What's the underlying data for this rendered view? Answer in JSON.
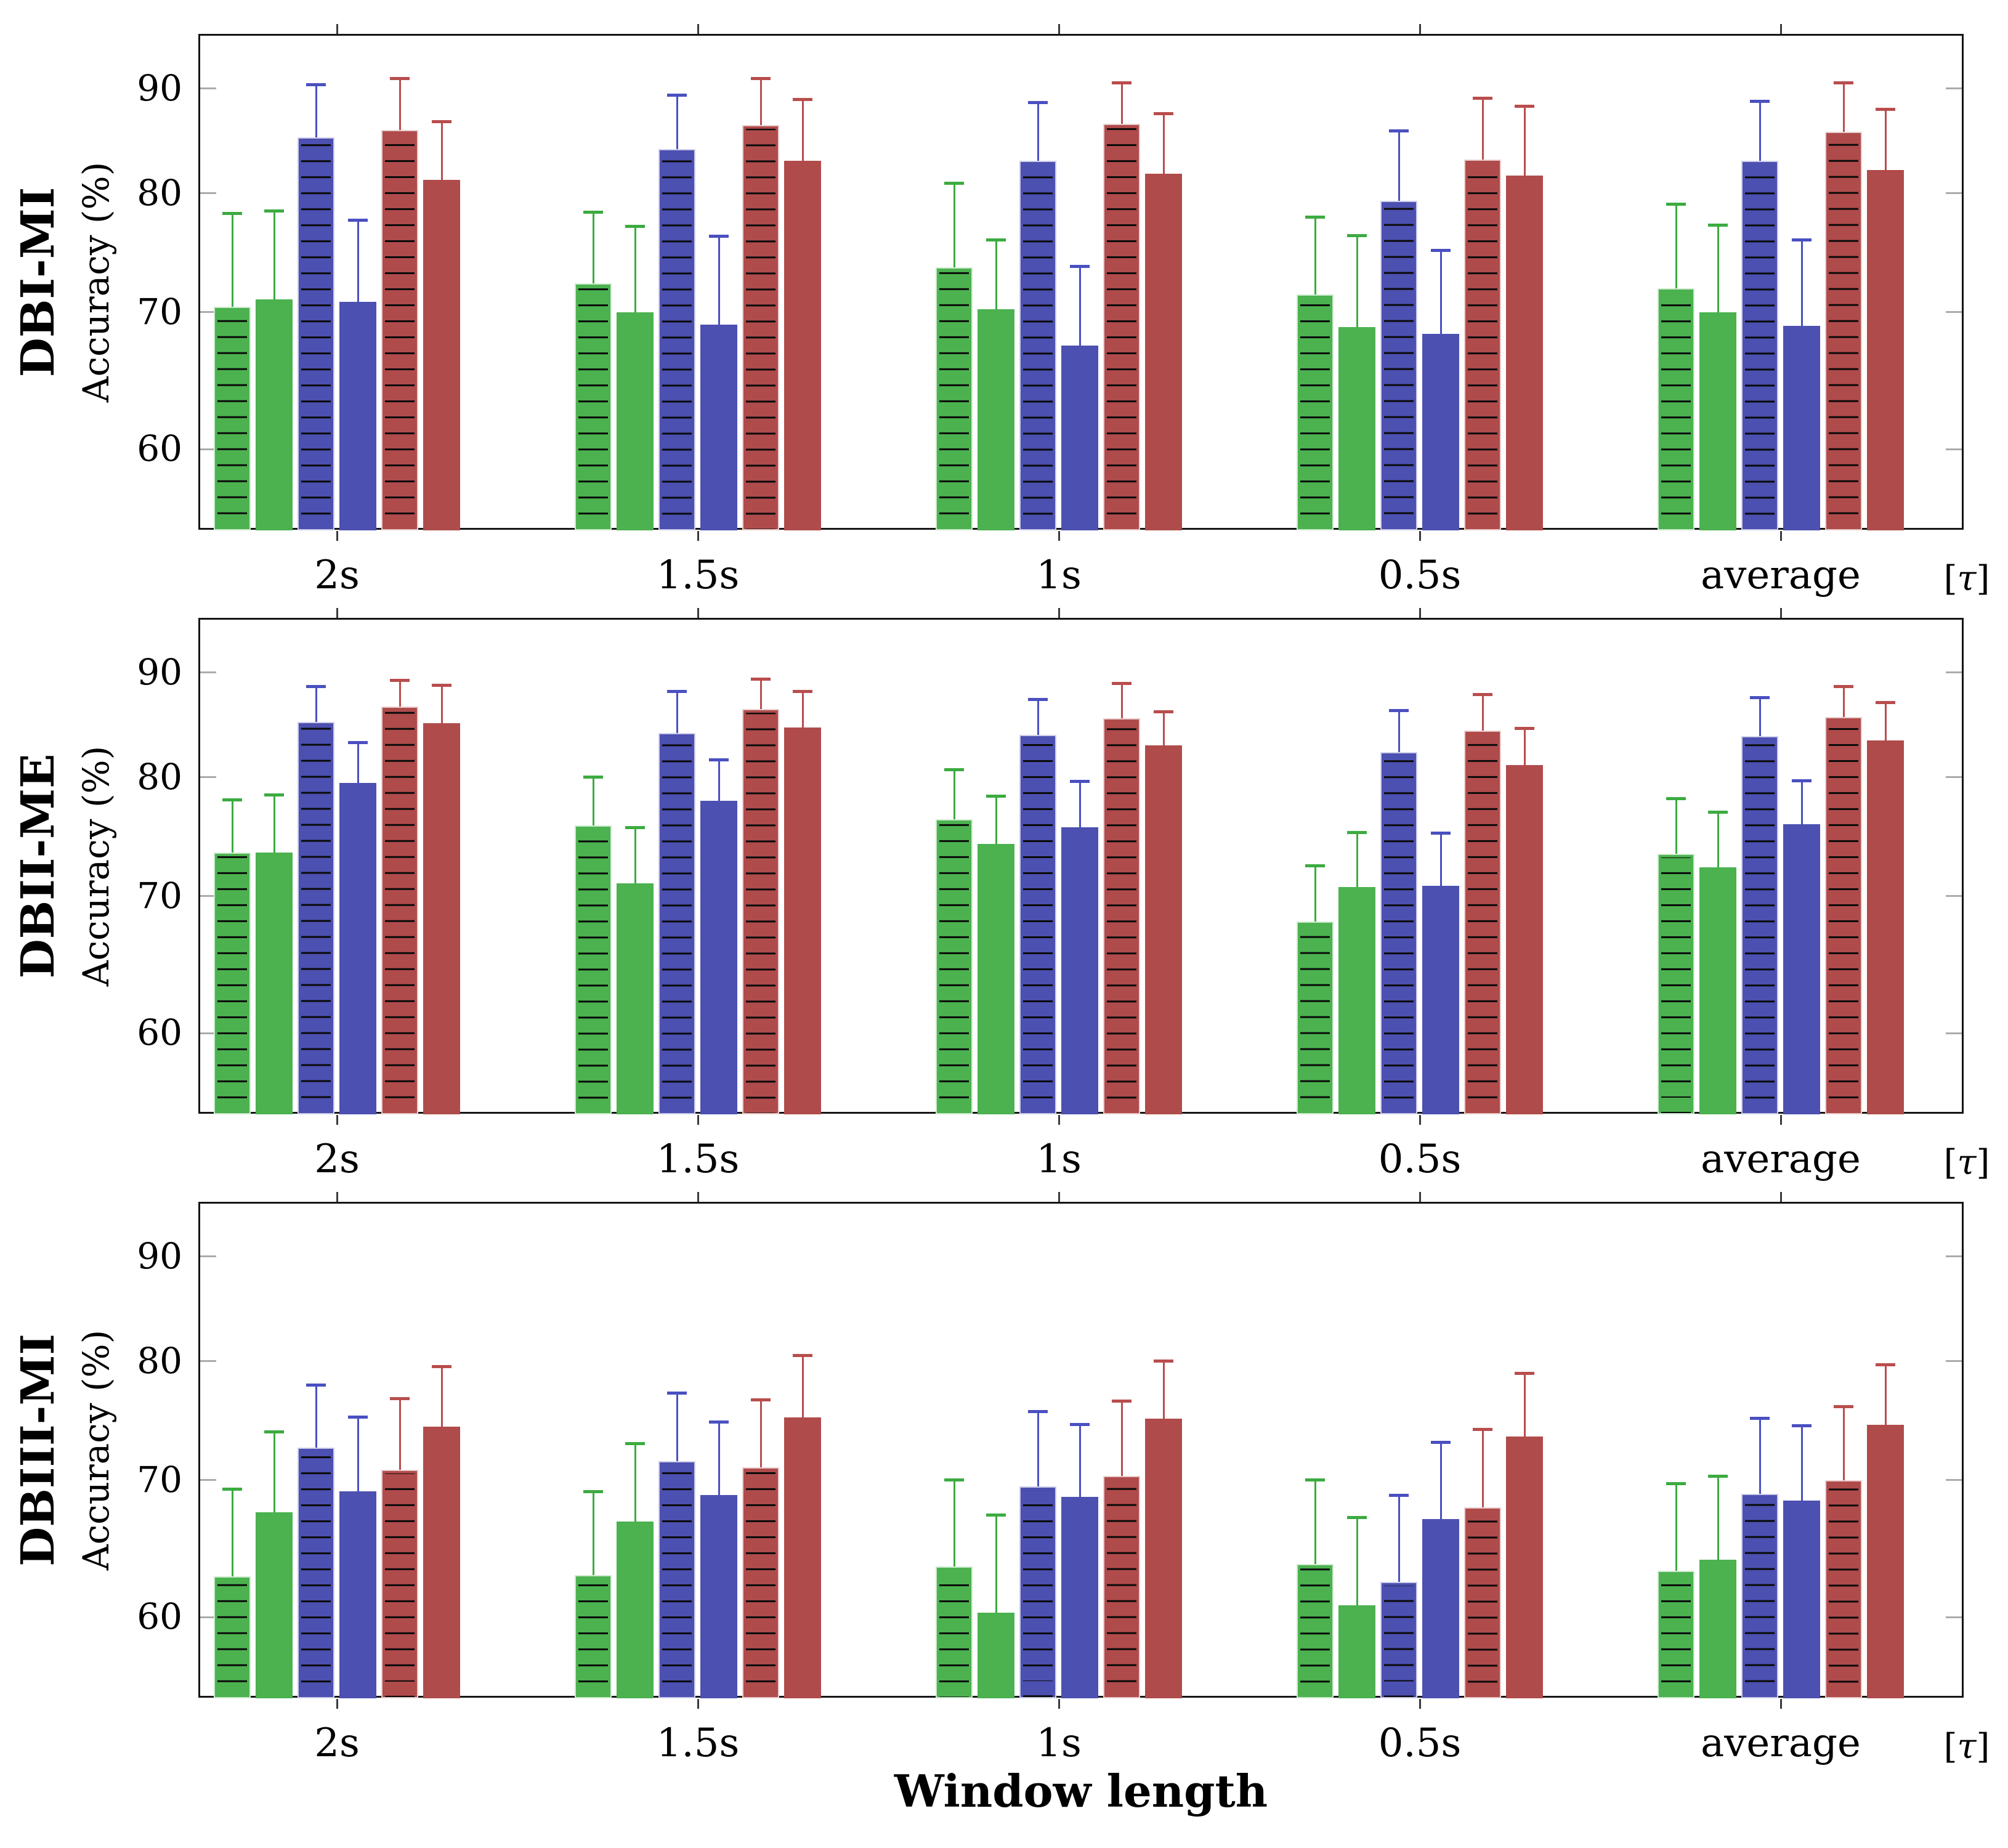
{
  "figure": {
    "x_axis_title": "Window length",
    "y_axis_title": "Accuracy (%)",
    "unit_label": "[τ]",
    "categories": [
      "2s",
      "1.5s",
      "1s",
      "0.5s",
      "average"
    ],
    "y_ticks": [
      60,
      70,
      80,
      90
    ],
    "colors": {
      "green": "#4bb24f",
      "blue": "#4c50b0",
      "red": "#b04b4b",
      "green_error": "#3cab40",
      "blue_error": "#4a50c0",
      "red_error": "#b94d4d",
      "axis": "#161616",
      "y_tick_mark": "#ababab",
      "x_tick_mark": "#3a3a3a"
    }
  },
  "chart_data": [
    {
      "type": "bar",
      "row_label": "DBI-MI",
      "ylabel": "Accuracy (%)",
      "xlabel": "Window length",
      "unit_label": "[τ]",
      "categories": [
        "2s",
        "1.5s",
        "1s",
        "0.5s",
        "average"
      ],
      "y_scale": "log10",
      "ylim": [
        54.8,
        95.7
      ],
      "yticks": [
        60,
        70,
        80,
        90
      ],
      "grid": false,
      "legend": "none",
      "series": [
        {
          "name": "green-hatched",
          "color": "#4bb24f",
          "error_color": "#3cab40",
          "hatched": true,
          "values": [
            70.4,
            72.3,
            73.6,
            71.4,
            71.9
          ],
          "error_top": [
            78.2,
            78.3,
            80.9,
            77.9,
            79.0
          ]
        },
        {
          "name": "green-solid",
          "color": "#4bb24f",
          "error_color": "#3cab40",
          "hatched": false,
          "values": [
            71.0,
            70.0,
            70.2,
            68.8,
            70.0
          ],
          "error_top": [
            78.4,
            77.1,
            75.9,
            76.3,
            77.2
          ]
        },
        {
          "name": "blue-hatched",
          "color": "#4c50b0",
          "error_color": "#4a50c0",
          "hatched": true,
          "values": [
            85.2,
            84.1,
            83.0,
            79.3,
            83.0
          ],
          "error_top": [
            90.4,
            89.3,
            88.6,
            85.8,
            88.7
          ]
        },
        {
          "name": "blue-solid",
          "color": "#4c50b0",
          "error_color": "#4a50c0",
          "hatched": false,
          "values": [
            70.8,
            69.0,
            67.4,
            68.3,
            68.9
          ],
          "error_top": [
            77.6,
            76.2,
            73.7,
            75.0,
            75.9
          ]
        },
        {
          "name": "red-hatched",
          "color": "#b04b4b",
          "error_color": "#b94d4d",
          "hatched": true,
          "values": [
            85.9,
            86.4,
            86.5,
            83.1,
            85.7
          ],
          "error_top": [
            91.0,
            91.0,
            90.6,
            89.0,
            90.6
          ]
        },
        {
          "name": "red-solid",
          "color": "#b04b4b",
          "error_color": "#b94d4d",
          "hatched": false,
          "values": [
            81.2,
            83.0,
            81.8,
            81.6,
            82.1
          ],
          "error_top": [
            86.7,
            88.9,
            87.5,
            88.2,
            87.9
          ]
        }
      ]
    },
    {
      "type": "bar",
      "row_label": "DBII-ME",
      "ylabel": "Accuracy (%)",
      "xlabel": "Window length",
      "unit_label": "[τ]",
      "categories": [
        "2s",
        "1.5s",
        "1s",
        "0.5s",
        "average"
      ],
      "y_scale": "log10",
      "ylim": [
        54.8,
        95.7
      ],
      "yticks": [
        60,
        70,
        80,
        90
      ],
      "grid": false,
      "legend": "none",
      "series": [
        {
          "name": "green-hatched",
          "color": "#4bb24f",
          "error_color": "#3cab40",
          "hatched": true,
          "values": [
            73.5,
            75.8,
            76.3,
            68.0,
            73.4
          ],
          "error_top": [
            78.0,
            80.0,
            80.7,
            72.4,
            78.1
          ]
        },
        {
          "name": "green-solid",
          "color": "#4bb24f",
          "error_color": "#3cab40",
          "hatched": false,
          "values": [
            73.5,
            71.0,
            74.2,
            70.7,
            72.3
          ],
          "error_top": [
            78.4,
            75.6,
            78.3,
            75.2,
            76.9
          ]
        },
        {
          "name": "blue-hatched",
          "color": "#4c50b0",
          "error_color": "#4a50c0",
          "hatched": true,
          "values": [
            85.1,
            84.1,
            83.9,
            82.3,
            83.8
          ],
          "error_top": [
            88.6,
            88.1,
            87.3,
            86.2,
            87.5
          ]
        },
        {
          "name": "blue-solid",
          "color": "#4c50b0",
          "error_color": "#4a50c0",
          "hatched": false,
          "values": [
            79.5,
            77.9,
            75.6,
            70.8,
            75.9
          ],
          "error_top": [
            83.2,
            81.6,
            79.6,
            75.1,
            79.7
          ]
        },
        {
          "name": "red-hatched",
          "color": "#b04b4b",
          "error_color": "#b94d4d",
          "hatched": true,
          "values": [
            86.6,
            86.4,
            85.5,
            84.3,
            85.6
          ],
          "error_top": [
            89.2,
            89.3,
            88.9,
            87.8,
            88.6
          ]
        },
        {
          "name": "red-solid",
          "color": "#b04b4b",
          "error_color": "#b94d4d",
          "hatched": false,
          "values": [
            85.0,
            84.6,
            82.9,
            81.1,
            83.4
          ],
          "error_top": [
            88.7,
            88.1,
            86.1,
            84.5,
            87.0
          ]
        }
      ]
    },
    {
      "type": "bar",
      "row_label": "DBIII-MI",
      "ylabel": "Accuracy (%)",
      "xlabel": "Window length",
      "unit_label": "[τ]",
      "categories": [
        "2s",
        "1.5s",
        "1s",
        "0.5s",
        "average"
      ],
      "y_scale": "log10",
      "ylim": [
        54.8,
        95.7
      ],
      "yticks": [
        60,
        70,
        80,
        90
      ],
      "grid": false,
      "legend": "none",
      "series": [
        {
          "name": "green-hatched",
          "color": "#4bb24f",
          "error_color": "#3cab40",
          "hatched": true,
          "values": [
            62.8,
            62.9,
            63.5,
            63.7,
            63.2
          ],
          "error_top": [
            69.3,
            69.1,
            70.0,
            70.0,
            69.7
          ]
        },
        {
          "name": "green-solid",
          "color": "#4bb24f",
          "error_color": "#3cab40",
          "hatched": false,
          "values": [
            67.5,
            66.8,
            60.3,
            60.8,
            64.0
          ],
          "error_top": [
            73.9,
            72.9,
            67.3,
            67.1,
            70.3
          ]
        },
        {
          "name": "blue-hatched",
          "color": "#4c50b0",
          "error_color": "#4a50c0",
          "hatched": true,
          "values": [
            72.6,
            71.5,
            69.5,
            62.4,
            68.9
          ],
          "error_top": [
            77.9,
            77.2,
            75.6,
            68.8,
            75.0
          ]
        },
        {
          "name": "blue-solid",
          "color": "#4c50b0",
          "error_color": "#4a50c0",
          "hatched": false,
          "values": [
            69.1,
            68.8,
            68.7,
            67.0,
            68.4
          ],
          "error_top": [
            75.1,
            74.7,
            74.5,
            73.0,
            74.4
          ]
        },
        {
          "name": "red-hatched",
          "color": "#b04b4b",
          "error_color": "#b94d4d",
          "hatched": true,
          "values": [
            70.8,
            71.0,
            70.3,
            67.9,
            70.0
          ],
          "error_top": [
            76.7,
            76.6,
            76.5,
            74.1,
            76.0
          ]
        },
        {
          "name": "red-solid",
          "color": "#b04b4b",
          "error_color": "#b94d4d",
          "hatched": false,
          "values": [
            74.3,
            75.1,
            75.0,
            73.5,
            74.5
          ],
          "error_top": [
            79.5,
            80.5,
            80.0,
            78.9,
            79.7
          ]
        }
      ]
    }
  ]
}
